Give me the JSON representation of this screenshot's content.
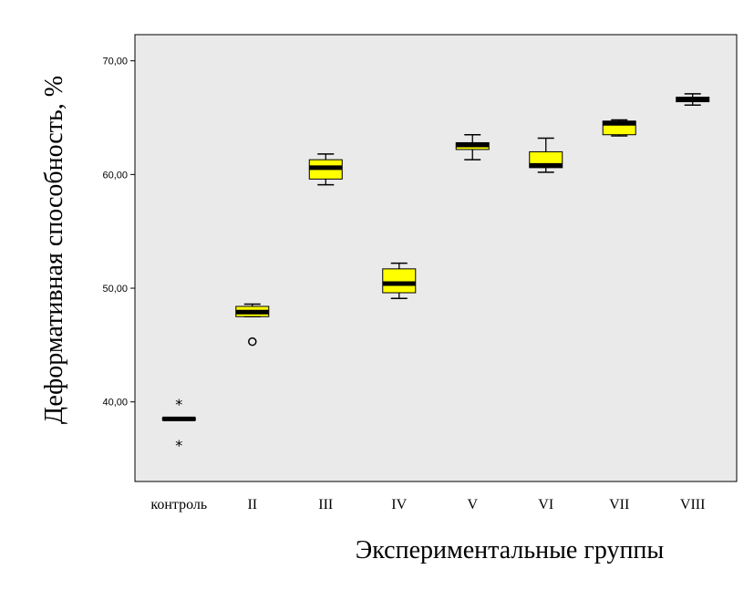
{
  "chart_data": {
    "type": "boxplot",
    "title": "",
    "xlabel": "Экспериментальные группы",
    "ylabel": "Деформативная способность, %",
    "ylim": [
      33.0,
      72.3
    ],
    "yticks": [
      "40,00",
      "50,00",
      "60,00",
      "70,00"
    ],
    "ytick_values": [
      40,
      50,
      60,
      70
    ],
    "grid": false,
    "colors": {
      "box_fill": "#ffff00",
      "median": "#000000",
      "plot_bg": "#eaeaea",
      "border": "#000000"
    },
    "categories": [
      "контроль",
      "II",
      "III",
      "IV",
      "V",
      "VI",
      "VII",
      "VIII"
    ],
    "boxes": [
      {
        "category": "контроль",
        "min": 38.4,
        "q1": 38.4,
        "median": 38.5,
        "q3": 38.6,
        "max": 38.6,
        "outliers": [],
        "extremes": [
          39.8,
          36.2
        ]
      },
      {
        "category": "II",
        "min": 47.5,
        "q1": 47.5,
        "median": 47.9,
        "q3": 48.4,
        "max": 48.6,
        "outliers": [
          45.3
        ],
        "extremes": []
      },
      {
        "category": "III",
        "min": 59.1,
        "q1": 59.6,
        "median": 60.6,
        "q3": 61.3,
        "max": 61.8,
        "outliers": [],
        "extremes": []
      },
      {
        "category": "IV",
        "min": 49.1,
        "q1": 49.6,
        "median": 50.4,
        "q3": 51.7,
        "max": 52.2,
        "outliers": [],
        "extremes": []
      },
      {
        "category": "V",
        "min": 61.3,
        "q1": 62.2,
        "median": 62.6,
        "q3": 62.8,
        "max": 63.5,
        "outliers": [],
        "extremes": []
      },
      {
        "category": "VI",
        "min": 60.2,
        "q1": 60.6,
        "median": 60.8,
        "q3": 62.0,
        "max": 63.2,
        "outliers": [],
        "extremes": []
      },
      {
        "category": "VII",
        "min": 63.4,
        "q1": 63.5,
        "median": 64.5,
        "q3": 64.7,
        "max": 64.8,
        "outliers": [],
        "extremes": []
      },
      {
        "category": "VIII",
        "min": 66.1,
        "q1": 66.4,
        "median": 66.6,
        "q3": 66.8,
        "max": 67.1,
        "outliers": [],
        "extremes": []
      }
    ]
  }
}
